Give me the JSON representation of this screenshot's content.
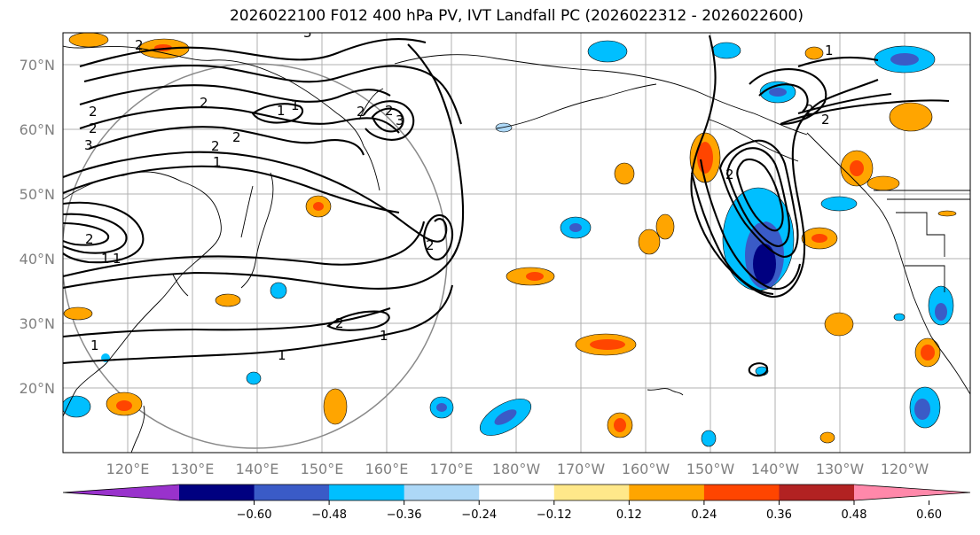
{
  "title": "2026022100 F012 400 hPa PV, IVT Landfall PC (2026022312 - 2026022600)",
  "latitude_labels": [
    "70°N",
    "60°N",
    "50°N",
    "40°N",
    "30°N",
    "20°N"
  ],
  "longitude_labels": [
    "120°E",
    "130°E",
    "140°E",
    "150°E",
    "160°E",
    "170°E",
    "180°W",
    "170°W",
    "160°W",
    "150°W",
    "140°W",
    "130°W",
    "120°W"
  ],
  "colorbar": {
    "tick_labels": [
      "−0.60",
      "−0.48",
      "−0.36",
      "−0.24",
      "−0.12",
      "0.12",
      "0.24",
      "0.36",
      "0.48",
      "0.60"
    ],
    "bin_colors": [
      "#9932cc",
      "#000080",
      "#3a5bc7",
      "#00bfff",
      "#add8f7",
      "#ffffff",
      "#ffe88a",
      "#ffa500",
      "#ff4500",
      "#b22222",
      "#ff88aa"
    ],
    "extend": "both"
  },
  "contour_labels": [
    "2",
    "3",
    "1",
    "2",
    "2",
    "2",
    "1",
    "1",
    "1",
    "2",
    "2",
    "3",
    "2",
    "2",
    "1",
    "2",
    "3",
    "2",
    "1",
    "2",
    "1",
    "1",
    "2",
    "2",
    "1",
    "2"
  ]
}
